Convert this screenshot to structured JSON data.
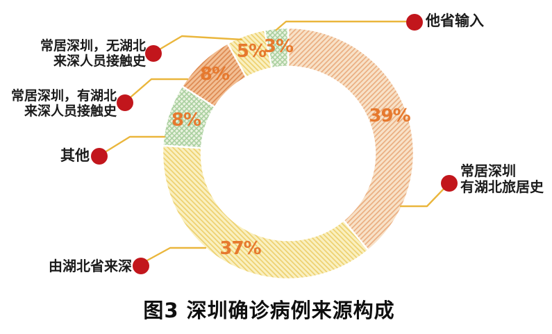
{
  "title": "图3 深圳确诊病例来源构成",
  "colors": {
    "background": "#ffffff",
    "leader_line": "#eab63c",
    "dot_red": "#c2161c",
    "pct_text": "#e6792e",
    "label_text": "#1b1b1b",
    "slice_separator": "#ffffff"
  },
  "chart_data": {
    "type": "pie",
    "subtype": "donut",
    "title": "图3 深圳确诊病例来源构成",
    "start_angle_deg": 0,
    "direction": "clockwise",
    "units": "%",
    "slices": [
      {
        "label": "常居深圳 有湖北旅居史",
        "value": 39,
        "pct_label": "39%",
        "base_color": "#f8e2c8",
        "hatch_color": "#eaad80",
        "hatch": "diag-down"
      },
      {
        "label": "由湖北省来深",
        "value": 37,
        "pct_label": "37%",
        "base_color": "#faf0c0",
        "hatch_color": "#edd06e",
        "hatch": "diag-up"
      },
      {
        "label": "其他",
        "value": 8,
        "pct_label": "8%",
        "base_color": "#ebf3e1",
        "hatch_color": "#a8cf9e",
        "hatch": "cross"
      },
      {
        "label": "常居深圳，有湖北来深人员接触史",
        "value": 8,
        "pct_label": "8%",
        "base_color": "#f2bf94",
        "hatch_color": "#dd8850",
        "hatch": "diag-down"
      },
      {
        "label": "常居深圳，无湖北来深人员接触史",
        "value": 5,
        "pct_label": "5%",
        "base_color": "#faf0c0",
        "hatch_color": "#edd06e",
        "hatch": "diag-up"
      },
      {
        "label": "他省输入",
        "value": 3,
        "pct_label": "3%",
        "base_color": "#ebf3e1",
        "hatch_color": "#a8cf9e",
        "hatch": "cross"
      }
    ]
  },
  "callouts": {
    "other_province": {
      "text": "他省输入"
    },
    "resident_no_hubei_contact": {
      "line1": "常居深圳，无湖北",
      "line2": "来深人员接触史"
    },
    "resident_with_hubei_contact": {
      "line1": "常居深圳，有湖北",
      "line2": "来深人员接触史"
    },
    "other": {
      "text": "其他"
    },
    "from_hubei": {
      "text": "由湖北省来深"
    },
    "resident_hubei_travel": {
      "line1": "常居深圳",
      "line2": "有湖北旅居史"
    }
  }
}
